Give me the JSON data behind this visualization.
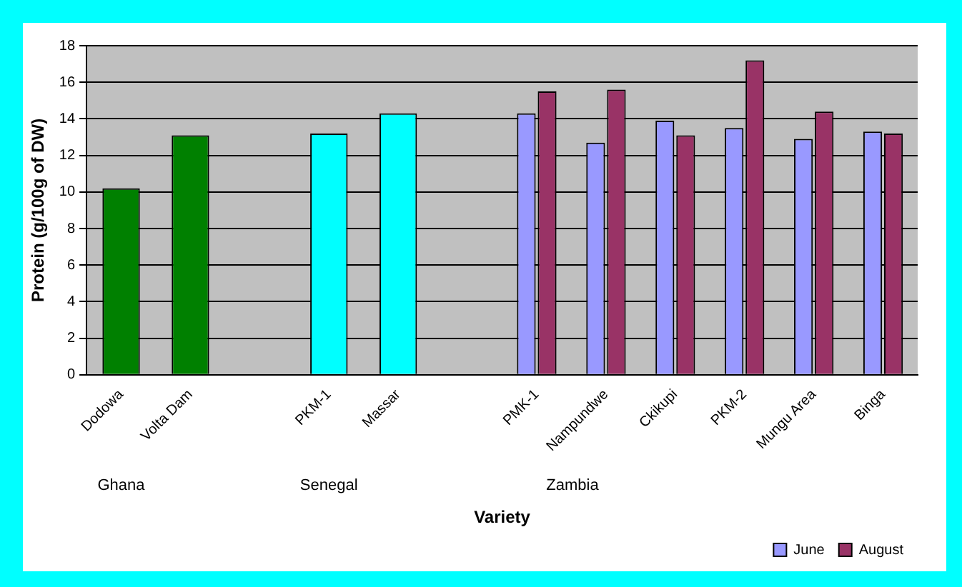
{
  "chart_data": {
    "type": "bar",
    "xlabel": "Variety",
    "ylabel": "Protein (g/100g of DW)",
    "categories": [
      "Dodowa",
      "Volta Dam",
      null,
      "PKM-1",
      "Massar",
      null,
      "PMK-1",
      "Nampundwe",
      "Ckikupi",
      "PKM-2",
      "Mungu Area",
      "Binga"
    ],
    "series": [
      {
        "color": "#008000",
        "values": [
          10.2,
          13.1,
          null,
          null,
          null,
          null,
          null,
          null,
          null,
          null,
          null,
          null
        ]
      },
      {
        "color": "#00ffff",
        "values": [
          null,
          null,
          null,
          13.2,
          14.3,
          null,
          null,
          null,
          null,
          null,
          null,
          null
        ]
      },
      {
        "name": "June",
        "color": "#9999ff",
        "values": [
          null,
          null,
          null,
          null,
          null,
          null,
          14.3,
          12.7,
          13.9,
          13.5,
          12.9,
          13.3
        ]
      },
      {
        "name": "August",
        "color": "#993366",
        "values": [
          null,
          null,
          null,
          null,
          null,
          null,
          15.5,
          15.6,
          13.1,
          17.2,
          14.4,
          13.2
        ]
      }
    ],
    "annotations": [
      "Ghana",
      "Senegal",
      "Zambia"
    ],
    "ylim": [
      0,
      18
    ],
    "yticks": [
      0,
      2,
      4,
      6,
      8,
      10,
      12,
      14,
      16,
      18
    ],
    "grid": "y",
    "legend": "bottom right"
  }
}
